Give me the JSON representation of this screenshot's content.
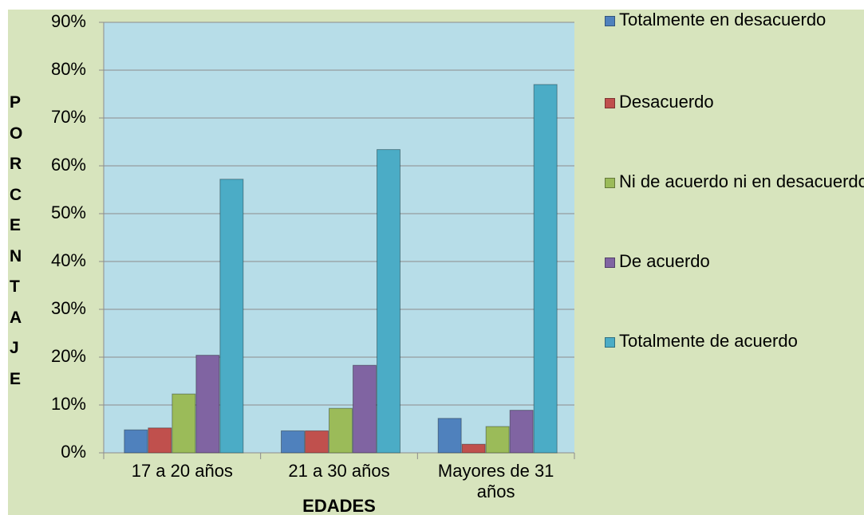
{
  "chart_data": {
    "type": "bar",
    "x_label": "EDADES",
    "y_label": "PORCENTAJE",
    "categories": [
      "17 a 20 años",
      "21 a 30 años",
      "Mayores de 31 años"
    ],
    "series": [
      {
        "name": "Totalmente en desacuerdo",
        "color": "#4f81bd",
        "values": [
          4.8,
          4.6,
          7.2
        ]
      },
      {
        "name": "Desacuerdo",
        "color": "#c0504d",
        "values": [
          5.2,
          4.6,
          1.8
        ]
      },
      {
        "name": "Ni de acuerdo ni en desacuerdo",
        "color": "#9bbb59",
        "values": [
          12.3,
          9.3,
          5.5
        ]
      },
      {
        "name": "De acuerdo",
        "color": "#8064a2",
        "values": [
          20.4,
          18.3,
          8.9
        ]
      },
      {
        "name": "Totalmente de acuerdo",
        "color": "#4bacc6",
        "values": [
          57.2,
          63.4,
          77.0
        ]
      }
    ],
    "ylim": [
      0,
      90
    ],
    "yticks": [
      {
        "value": 0,
        "label": "0%"
      },
      {
        "value": 10,
        "label": "10%"
      },
      {
        "value": 20,
        "label": "20%"
      },
      {
        "value": 30,
        "label": "30%"
      },
      {
        "value": 40,
        "label": "40%"
      },
      {
        "value": 50,
        "label": "50%"
      },
      {
        "value": 60,
        "label": "60%"
      },
      {
        "value": 70,
        "label": "70%"
      },
      {
        "value": 80,
        "label": "80%"
      },
      {
        "value": 90,
        "label": "90%"
      }
    ],
    "grid": true,
    "legend": "right"
  }
}
